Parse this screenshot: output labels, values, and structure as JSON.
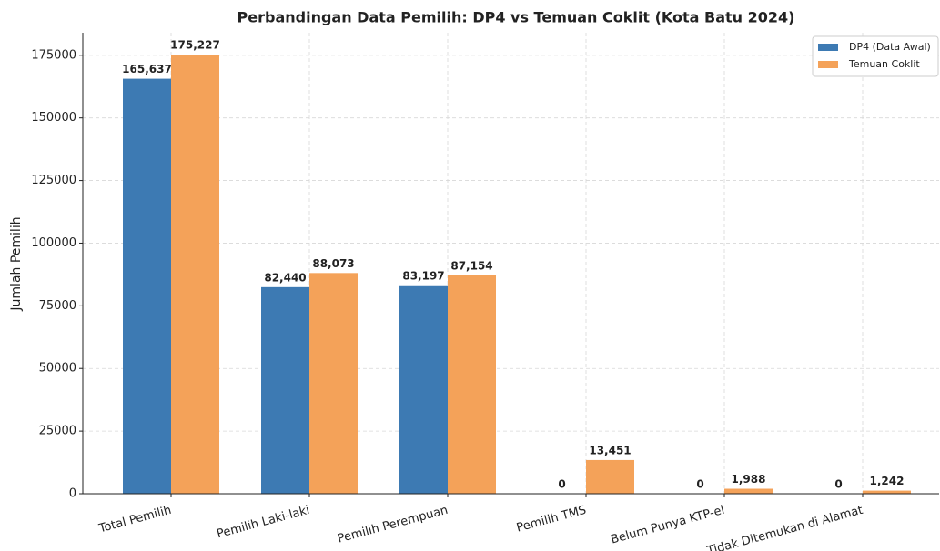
{
  "chart_data": {
    "type": "bar",
    "title": "Perbandingan Data Pemilih: DP4 vs Temuan Coklit (Kota Batu 2024)",
    "ylabel": "Jumlah Pemilih",
    "categories": [
      "Total Pemilih",
      "Pemilih Laki-laki",
      "Pemilih Perempuan",
      "Pemilih TMS",
      "Belum Punya KTP-el",
      "Tidak Ditemukan di Alamat"
    ],
    "series": [
      {
        "name": "DP4 (Data Awal)",
        "color": "#3d7ab3",
        "values": [
          165637,
          82440,
          83197,
          0,
          0,
          0
        ],
        "value_labels": [
          "165,637",
          "82,440",
          "83,197",
          "0",
          "0",
          "0"
        ]
      },
      {
        "name": "Temuan Coklit",
        "color": "#f4a259",
        "values": [
          175227,
          88073,
          87154,
          13451,
          1988,
          1242
        ],
        "value_labels": [
          "175,227",
          "88,073",
          "87,154",
          "13,451",
          "1,988",
          "1,242"
        ]
      }
    ],
    "ylim": [
      0,
      184000
    ],
    "yticks": [
      0,
      25000,
      50000,
      75000,
      100000,
      125000,
      150000,
      175000
    ],
    "grid": true,
    "legend": "upper right"
  }
}
